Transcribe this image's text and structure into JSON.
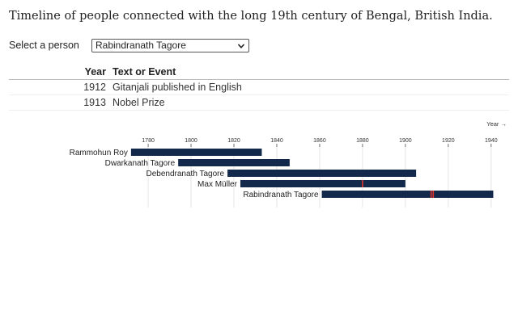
{
  "page": {
    "title": "Timeline of people connected with the long 19th century of Bengal, British India."
  },
  "selector": {
    "label": "Select a person",
    "selected": "Rabindranath Tagore",
    "chevron_icon": "chevron-down-icon"
  },
  "events_table": {
    "headers": {
      "year": "Year",
      "event": "Text or Event"
    },
    "rows": [
      {
        "year": "1912",
        "event": "Gitanjali published in English"
      },
      {
        "year": "1913",
        "event": "Nobel Prize"
      }
    ]
  },
  "chart_data": {
    "type": "bar",
    "orientation": "horizontal-range",
    "axis_title": "Year →",
    "ticks": [
      1780,
      1800,
      1820,
      1840,
      1860,
      1880,
      1900,
      1920,
      1940
    ],
    "xlim": [
      1766,
      1948
    ],
    "grid": true,
    "bar_color": "#13294b",
    "marker_color": "#e0352b",
    "people": [
      {
        "name": "Rammohun Roy",
        "start": 1772,
        "end": 1833,
        "markers": []
      },
      {
        "name": "Dwarkanath Tagore",
        "start": 1794,
        "end": 1846,
        "markers": []
      },
      {
        "name": "Debendranath Tagore",
        "start": 1817,
        "end": 1905,
        "markers": []
      },
      {
        "name": "Max Müller",
        "start": 1823,
        "end": 1900,
        "markers": [
          1880
        ]
      },
      {
        "name": "Rabindranath Tagore",
        "start": 1861,
        "end": 1941,
        "markers": [
          1912,
          1913
        ]
      }
    ]
  }
}
